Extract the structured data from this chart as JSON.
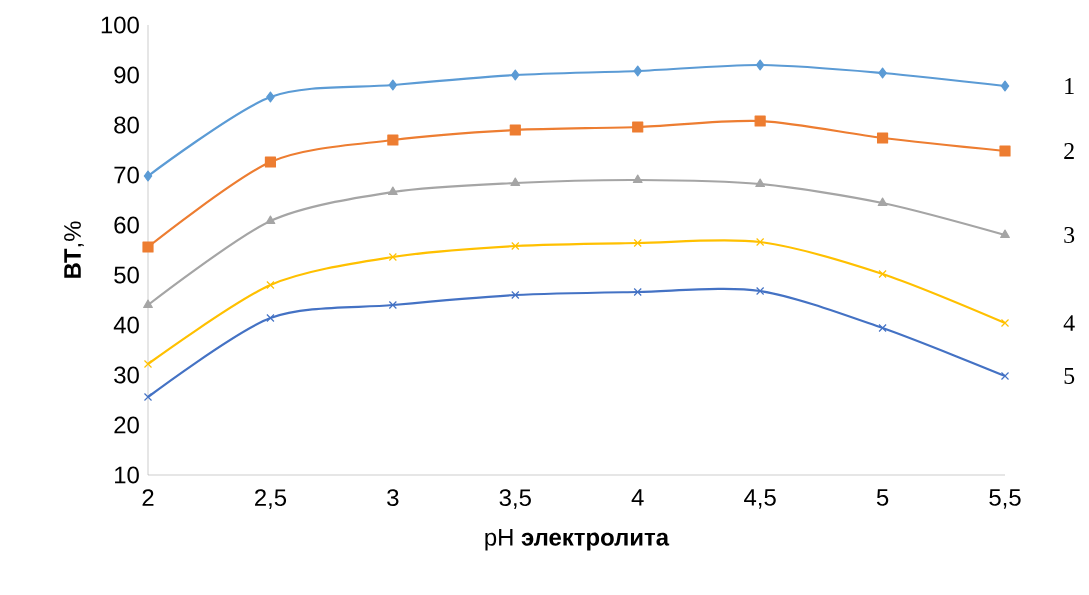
{
  "chart_data": {
    "type": "line",
    "xlabel": "pH **электролита**",
    "ylabel": "**ВТ**,%",
    "categories": [
      "2",
      "2,5",
      "3",
      "3,5",
      "4",
      "4,5",
      "5",
      "5,5"
    ],
    "ylim": [
      10,
      100
    ],
    "yticks": [
      10,
      20,
      30,
      40,
      50,
      60,
      70,
      80,
      90,
      100
    ],
    "grid": false,
    "series": [
      {
        "name": "1",
        "color": "#5b9bd5",
        "marker": "diamond",
        "values": [
          69.8,
          85.6,
          88,
          90,
          90.8,
          92,
          90.4,
          87.8
        ]
      },
      {
        "name": "2",
        "color": "#ed7d31",
        "marker": "square",
        "values": [
          55.6,
          72.6,
          77,
          79,
          79.6,
          80.8,
          77.4,
          74.8
        ]
      },
      {
        "name": "3",
        "color": "#a5a5a5",
        "marker": "triangle",
        "values": [
          44,
          60.8,
          66.6,
          68.4,
          69,
          68.2,
          64.4,
          58
        ]
      },
      {
        "name": "4",
        "color": "#ffc000",
        "marker": "cross",
        "values": [
          32.2,
          48,
          53.6,
          55.8,
          56.4,
          56.6,
          50.2,
          40.4
        ]
      },
      {
        "name": "5",
        "color": "#4472c4",
        "marker": "cross",
        "values": [
          25.6,
          41.4,
          44,
          46,
          46.6,
          46.8,
          39.4,
          29.8
        ]
      }
    ]
  }
}
